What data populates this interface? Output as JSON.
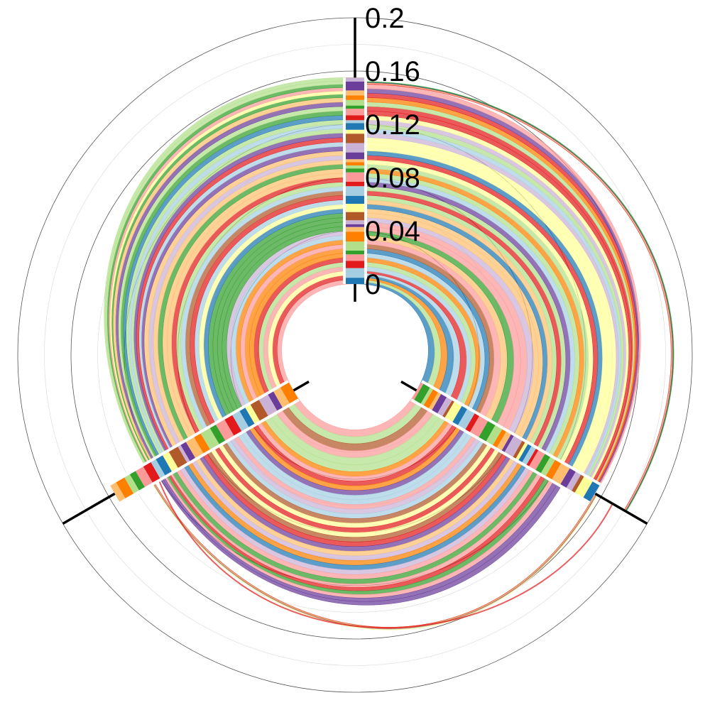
{
  "chart_data": {
    "type": "hive-plot",
    "title": "",
    "rlim": [
      0,
      0.2
    ],
    "axis_angles_deg": [
      0,
      120,
      240
    ],
    "radial_ticks": [
      {
        "value": 0.2,
        "label": "0.2"
      },
      {
        "value": 0.16,
        "label": "0.16"
      },
      {
        "value": 0.12,
        "label": "0.12"
      },
      {
        "value": 0.08,
        "label": "0.08"
      },
      {
        "value": 0.04,
        "label": "0.04"
      },
      {
        "value": 0,
        "label": "0"
      }
    ],
    "grid": true,
    "link_groups": [
      {
        "from_axis": 0,
        "to_axis": 1,
        "color": "#1f78b4",
        "from": [
          0.0,
          0.01
        ],
        "to": [
          0.0,
          0.03
        ]
      },
      {
        "from_axis": 0,
        "to_axis": 1,
        "color": "#a6cee3",
        "from": [
          0.01,
          0.03
        ],
        "to": [
          0.03,
          0.05
        ]
      },
      {
        "from_axis": 0,
        "to_axis": 1,
        "color": "#fb9a99",
        "from": [
          0.03,
          0.05
        ],
        "to": [
          0.05,
          0.08
        ]
      },
      {
        "from_axis": 0,
        "to_axis": 1,
        "color": "#fdbf6f",
        "from": [
          0.05,
          0.07
        ],
        "to": [
          0.08,
          0.1
        ]
      },
      {
        "from_axis": 0,
        "to_axis": 1,
        "color": "#b2df8a",
        "from": [
          0.07,
          0.09
        ],
        "to": [
          0.1,
          0.12
        ]
      },
      {
        "from_axis": 0,
        "to_axis": 1,
        "color": "#ffff99",
        "from": [
          0.09,
          0.11
        ],
        "to": [
          0.12,
          0.14
        ]
      },
      {
        "from_axis": 0,
        "to_axis": 1,
        "color": "#cab2d6",
        "from": [
          0.11,
          0.13
        ],
        "to": [
          0.14,
          0.15
        ]
      },
      {
        "from_axis": 0,
        "to_axis": 1,
        "color": "#e31a1c",
        "from": [
          0.13,
          0.15
        ],
        "to": [
          0.15,
          0.155
        ]
      },
      {
        "from_axis": 0,
        "to_axis": 2,
        "color": "#fb9a99",
        "from": [
          0.0,
          0.02
        ],
        "to": [
          0.0,
          0.02
        ]
      },
      {
        "from_axis": 0,
        "to_axis": 2,
        "color": "#ff7f00",
        "from": [
          0.02,
          0.04
        ],
        "to": [
          0.02,
          0.04
        ]
      },
      {
        "from_axis": 0,
        "to_axis": 2,
        "color": "#33a02c",
        "from": [
          0.04,
          0.06
        ],
        "to": [
          0.04,
          0.06
        ]
      },
      {
        "from_axis": 0,
        "to_axis": 2,
        "color": "#a6cee3",
        "from": [
          0.06,
          0.08
        ],
        "to": [
          0.06,
          0.08
        ]
      },
      {
        "from_axis": 0,
        "to_axis": 2,
        "color": "#fdbf6f",
        "from": [
          0.08,
          0.1
        ],
        "to": [
          0.08,
          0.1
        ]
      },
      {
        "from_axis": 0,
        "to_axis": 2,
        "color": "#6a3d9a",
        "from": [
          0.1,
          0.12
        ],
        "to": [
          0.1,
          0.11
        ]
      },
      {
        "from_axis": 0,
        "to_axis": 2,
        "color": "#b2df8a",
        "from": [
          0.12,
          0.14
        ],
        "to": [
          0.11,
          0.12
        ]
      },
      {
        "from_axis": 0,
        "to_axis": 2,
        "color": "#33a02c",
        "from": [
          0.14,
          0.155
        ],
        "to": [
          0.12,
          0.125
        ]
      },
      {
        "from_axis": 1,
        "to_axis": 2,
        "color": "#fb9a99",
        "from": [
          0.0,
          0.03
        ],
        "to": [
          0.0,
          0.03
        ]
      },
      {
        "from_axis": 1,
        "to_axis": 2,
        "color": "#ff7f00",
        "from": [
          0.03,
          0.05
        ],
        "to": [
          0.03,
          0.05
        ]
      },
      {
        "from_axis": 1,
        "to_axis": 2,
        "color": "#a6cee3",
        "from": [
          0.05,
          0.07
        ],
        "to": [
          0.05,
          0.07
        ]
      },
      {
        "from_axis": 1,
        "to_axis": 2,
        "color": "#e31a1c",
        "from": [
          0.07,
          0.09
        ],
        "to": [
          0.07,
          0.09
        ]
      },
      {
        "from_axis": 1,
        "to_axis": 2,
        "color": "#cab2d6",
        "from": [
          0.09,
          0.11
        ],
        "to": [
          0.09,
          0.11
        ]
      },
      {
        "from_axis": 1,
        "to_axis": 2,
        "color": "#fb9a99",
        "from": [
          0.11,
          0.13
        ],
        "to": [
          0.11,
          0.12
        ]
      },
      {
        "from_axis": 0,
        "to_axis": 1,
        "color": "#e31a1c",
        "from": [
          0.15,
          0.152
        ],
        "to": [
          0.18,
          0.182
        ]
      },
      {
        "from_axis": 1,
        "to_axis": 2,
        "color": "#e31a1c",
        "from": [
          0.155,
          0.157
        ],
        "to": [
          0.125,
          0.127
        ]
      }
    ],
    "palette": [
      "#1f78b4",
      "#a6cee3",
      "#e31a1c",
      "#fb9a99",
      "#33a02c",
      "#b2df8a",
      "#ff7f00",
      "#fdbf6f",
      "#6a3d9a",
      "#cab2d6",
      "#b15928",
      "#ffff99"
    ]
  }
}
